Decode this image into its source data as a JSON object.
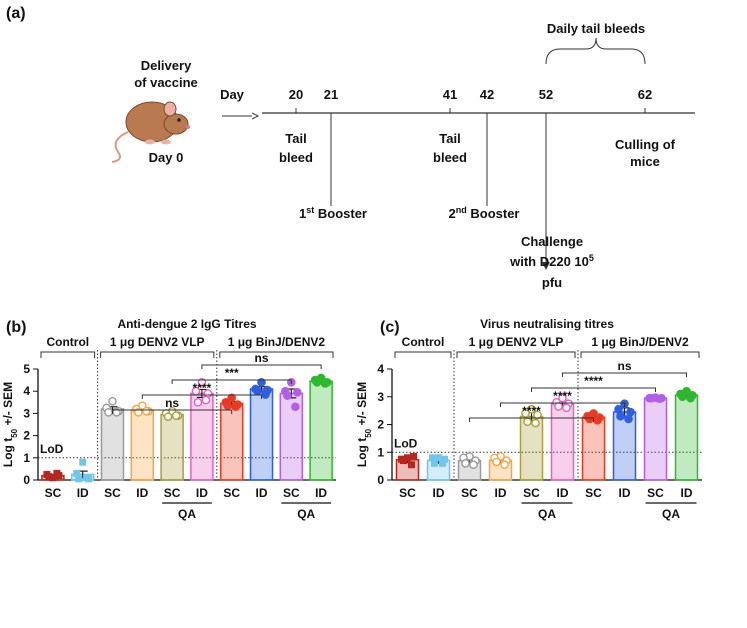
{
  "panel_labels": [
    "(a)",
    "(b)",
    "(c)"
  ],
  "timeline": {
    "start_lines": [
      "Delivery",
      "of vaccine"
    ],
    "start_day": "Day 0",
    "axis_label": "Day",
    "days": [
      20,
      21,
      41,
      42,
      52,
      62
    ],
    "daily": "Daily tail bleeds",
    "bleed_1": [
      "Tail",
      "bleed"
    ],
    "booster_1": {
      "text": "1",
      "sup": "st",
      "after": " Booster"
    },
    "bleed_2": [
      "Tail",
      "bleed"
    ],
    "booster_2": {
      "text": "2",
      "sup": "nd",
      "after": " Booster"
    },
    "challenge": {
      "line1": "Challenge",
      "line2": "with D220 10",
      "line2_sup": "5",
      "line3": "pfu"
    },
    "culling": [
      "Culling of",
      "mice"
    ]
  },
  "chart_data": [
    {
      "type": "bar",
      "title": "Anti-dengue 2 IgG Titres",
      "ylabel": {
        "text": "Log t",
        "sub": "50",
        "after": " +/- SEM"
      },
      "categories": [
        "SC",
        "ID",
        "SC",
        "ID",
        "SC",
        "ID",
        "SC",
        "ID",
        "SC",
        "ID"
      ],
      "values": [
        0.2,
        0.25,
        3.2,
        3.15,
        2.95,
        3.9,
        3.45,
        4.1,
        3.9,
        4.45
      ],
      "errors": [
        0.05,
        0.15,
        0.1,
        0.06,
        0.05,
        0.18,
        0.08,
        0.1,
        0.2,
        0.05
      ],
      "colors": [
        "#b5271f",
        "#6cc8ef",
        "#9a9a9a",
        "#f4a640",
        "#a8a03a",
        "#e85fc2",
        "#ea3a22",
        "#2f5fe0",
        "#b25ee8",
        "#2eb82e"
      ],
      "points": [
        [
          0.1,
          0.25,
          0.2,
          0.15,
          0.3
        ],
        [
          0.8,
          0.3,
          0.05,
          0.05,
          0.1
        ],
        [
          3.55,
          3.25,
          3.1,
          3.05,
          3.05
        ],
        [
          3.35,
          3.2,
          3.1,
          3.05,
          3.1
        ],
        [
          3.1,
          3.0,
          2.9,
          2.85,
          2.9
        ],
        [
          4.4,
          4.0,
          3.9,
          3.5,
          3.6
        ],
        [
          3.7,
          3.5,
          3.4,
          3.35,
          3.3
        ],
        [
          4.4,
          4.1,
          4.05,
          4.0,
          3.85
        ],
        [
          4.4,
          4.0,
          3.95,
          3.8,
          3.3
        ],
        [
          4.6,
          4.5,
          4.4,
          4.4,
          4.35
        ]
      ],
      "groups": [
        {
          "name": "Control",
          "size": 2,
          "marker": "square"
        },
        {
          "name": "1 μg DENV2 VLP",
          "size": 4,
          "marker": "open"
        },
        {
          "name": "1 μg BinJ/DENV2",
          "size": 4,
          "marker": "filled"
        }
      ],
      "subgroups": [
        {
          "label": "QA",
          "from": 4,
          "to": 5
        },
        {
          "label": "QA",
          "from": 8,
          "to": 9
        }
      ],
      "comparisons": [
        {
          "from": 2,
          "to": 6,
          "label": "ns"
        },
        {
          "from": 3,
          "to": 7,
          "label": "****"
        },
        {
          "from": 4,
          "to": 8,
          "label": "***"
        },
        {
          "from": 5,
          "to": 9,
          "label": "ns"
        }
      ],
      "lod": {
        "label": "LoD",
        "value": 1
      },
      "ylim": [
        0,
        5
      ],
      "yticks": [
        0,
        1,
        2,
        3,
        4,
        5
      ]
    },
    {
      "type": "bar",
      "title": "Virus neutralising titres",
      "ylabel": {
        "text": "Log t",
        "sub": "50",
        "after": " +/- SEM"
      },
      "categories": [
        "SC",
        "ID",
        "SC",
        "ID",
        "SC",
        "ID",
        "SC",
        "ID",
        "SC",
        "ID"
      ],
      "values": [
        0.73,
        0.71,
        0.7,
        0.71,
        2.29,
        2.75,
        2.26,
        2.45,
        2.95,
        3.06
      ],
      "errors": [
        0.1,
        0.1,
        0.1,
        0.1,
        0.15,
        0.1,
        0.07,
        0.15,
        0.02,
        0.08
      ],
      "colors": [
        "#b5271f",
        "#6cc8ef",
        "#9a9a9a",
        "#f4a640",
        "#a8a03a",
        "#e85fc2",
        "#ea3a22",
        "#2f5fe0",
        "#b25ee8",
        "#2eb82e"
      ],
      "points": [
        [
          0.8,
          0.75,
          0.85,
          0.7,
          0.55
        ],
        [
          0.8,
          0.8,
          0.75,
          0.6,
          0.6
        ],
        [
          0.85,
          0.8,
          0.7,
          0.6,
          0.55
        ],
        [
          0.85,
          0.8,
          0.7,
          0.65,
          0.55
        ],
        [
          2.55,
          2.4,
          2.35,
          2.1,
          2.05
        ],
        [
          2.95,
          2.8,
          2.75,
          2.65,
          2.6
        ],
        [
          2.4,
          2.3,
          2.25,
          2.2,
          2.15
        ],
        [
          2.75,
          2.55,
          2.45,
          2.3,
          2.2
        ],
        [
          2.97,
          2.95,
          2.95,
          2.95,
          2.93
        ],
        [
          3.2,
          3.1,
          3.05,
          3.0,
          2.95
        ]
      ],
      "groups": [
        {
          "name": "Control",
          "size": 2,
          "marker": "square"
        },
        {
          "name": "1 μg DENV2 VLP",
          "size": 4,
          "marker": "open"
        },
        {
          "name": "1 μg BinJ/DENV2",
          "size": 4,
          "marker": "filled"
        }
      ],
      "subgroups": [
        {
          "label": "QA",
          "from": 4,
          "to": 5
        },
        {
          "label": "QA",
          "from": 8,
          "to": 9
        }
      ],
      "comparisons": [
        {
          "from": 2,
          "to": 6,
          "label": "****"
        },
        {
          "from": 3,
          "to": 7,
          "label": "****"
        },
        {
          "from": 4,
          "to": 8,
          "label": "****"
        },
        {
          "from": 5,
          "to": 9,
          "label": "ns"
        }
      ],
      "lod": {
        "label": "LoD",
        "value": 1
      },
      "ylim": [
        0,
        4
      ],
      "yticks": [
        0,
        1,
        2,
        3,
        4
      ]
    }
  ]
}
